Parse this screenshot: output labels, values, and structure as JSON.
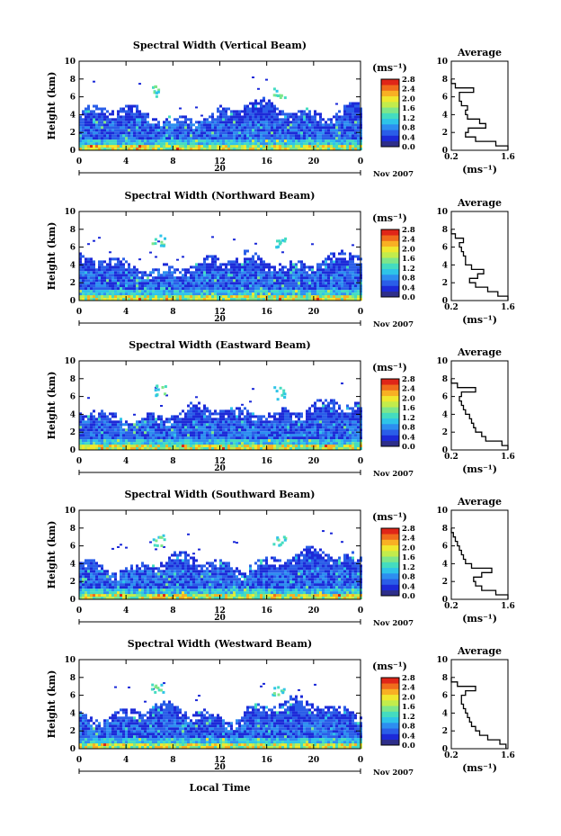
{
  "shared": {
    "x_ticks": [
      "0",
      "4",
      "8",
      "12",
      "16",
      "20",
      "0"
    ],
    "y_ticks": [
      "0",
      "2",
      "4",
      "6",
      "8",
      "10"
    ],
    "ylabel": "Height (km)",
    "date_day": "20",
    "date_label": "Nov 2007",
    "cb_unit": "(ms⁻¹)",
    "cb_ticks": [
      "0.0",
      "0.4",
      "0.8",
      "1.2",
      "1.6",
      "2.0",
      "2.4",
      "2.8"
    ],
    "avg_title": "Average",
    "avg_x_ticks": [
      "0.2",
      "1.6"
    ],
    "avg_xlabel": "(ms⁻¹)",
    "avg_y_ticks": [
      "0",
      "2",
      "4",
      "6",
      "8",
      "10"
    ],
    "xlabel": "Local Time",
    "colors": [
      "#2e2e8a",
      "#1c2ad8",
      "#2a5ee8",
      "#2d8ef0",
      "#2ec4e8",
      "#44dcc0",
      "#7ee68a",
      "#c2ec4c",
      "#f0e82e",
      "#f8b024",
      "#f06c1c",
      "#e02618"
    ]
  },
  "chart_data": [
    {
      "type": "heatmap",
      "title": "Spectral Width (Vertical Beam)",
      "x_range": [
        0,
        24
      ],
      "y_range": [
        0,
        10
      ],
      "zlim": [
        0.0,
        2.8
      ],
      "avg_profile": {
        "height_km": [
          0,
          0.5,
          1,
          1.5,
          2,
          2.5,
          3,
          3.5,
          4,
          4.5,
          5,
          5.5,
          6,
          6.5,
          7,
          7.5
        ],
        "width": [
          1.6,
          1.3,
          0.8,
          0.55,
          0.62,
          1.05,
          0.9,
          0.6,
          0.55,
          0.6,
          0.45,
          0.4,
          0.4,
          0.75,
          0.3,
          0.2
        ]
      }
    },
    {
      "type": "heatmap",
      "title": "Spectral Width (Northward Beam)",
      "x_range": [
        0,
        24
      ],
      "y_range": [
        0,
        10
      ],
      "zlim": [
        0.0,
        2.8
      ],
      "avg_profile": {
        "height_km": [
          0,
          0.5,
          1,
          1.5,
          2,
          2.5,
          3,
          3.5,
          4,
          4.5,
          5,
          5.5,
          6,
          6.5,
          7,
          7.5
        ],
        "width": [
          1.6,
          1.35,
          1.1,
          0.8,
          0.65,
          0.85,
          1.0,
          0.7,
          0.55,
          0.55,
          0.5,
          0.45,
          0.4,
          0.5,
          0.3,
          0.2
        ]
      }
    },
    {
      "type": "heatmap",
      "title": "Spectral Width (Eastward Beam)",
      "x_range": [
        0,
        24
      ],
      "y_range": [
        0,
        10
      ],
      "zlim": [
        0.0,
        2.8
      ],
      "avg_profile": {
        "height_km": [
          0,
          0.5,
          1,
          1.5,
          2,
          2.5,
          3,
          3.5,
          4,
          4.5,
          5,
          5.5,
          6,
          6.5,
          7,
          7.5
        ],
        "width": [
          1.6,
          1.45,
          1.05,
          0.95,
          0.8,
          0.75,
          0.7,
          0.65,
          0.55,
          0.5,
          0.45,
          0.4,
          0.45,
          0.8,
          0.35,
          0.2
        ]
      }
    },
    {
      "type": "heatmap",
      "title": "Spectral Width (Southward Beam)",
      "x_range": [
        0,
        24
      ],
      "y_range": [
        0,
        10
      ],
      "zlim": [
        0.0,
        2.8
      ],
      "avg_profile": {
        "height_km": [
          0,
          0.5,
          1,
          1.5,
          2,
          2.5,
          3,
          3.5,
          4,
          4.5,
          5,
          5.5,
          6,
          6.5,
          7,
          7.5
        ],
        "width": [
          1.6,
          1.3,
          0.95,
          0.8,
          0.75,
          0.95,
          1.2,
          0.7,
          0.55,
          0.5,
          0.45,
          0.4,
          0.35,
          0.3,
          0.25,
          0.2
        ]
      }
    },
    {
      "type": "heatmap",
      "title": "Spectral Width (Westward Beam)",
      "x_range": [
        0,
        24
      ],
      "y_range": [
        0,
        10
      ],
      "zlim": [
        0.0,
        2.8
      ],
      "avg_profile": {
        "height_km": [
          0,
          0.5,
          1,
          1.5,
          2,
          2.5,
          3,
          3.5,
          4,
          4.5,
          5,
          5.5,
          6,
          6.5,
          7,
          7.5
        ],
        "width": [
          1.55,
          1.4,
          1.1,
          0.9,
          0.8,
          0.7,
          0.65,
          0.6,
          0.55,
          0.5,
          0.45,
          0.45,
          0.55,
          0.8,
          0.35,
          0.2
        ]
      }
    }
  ]
}
